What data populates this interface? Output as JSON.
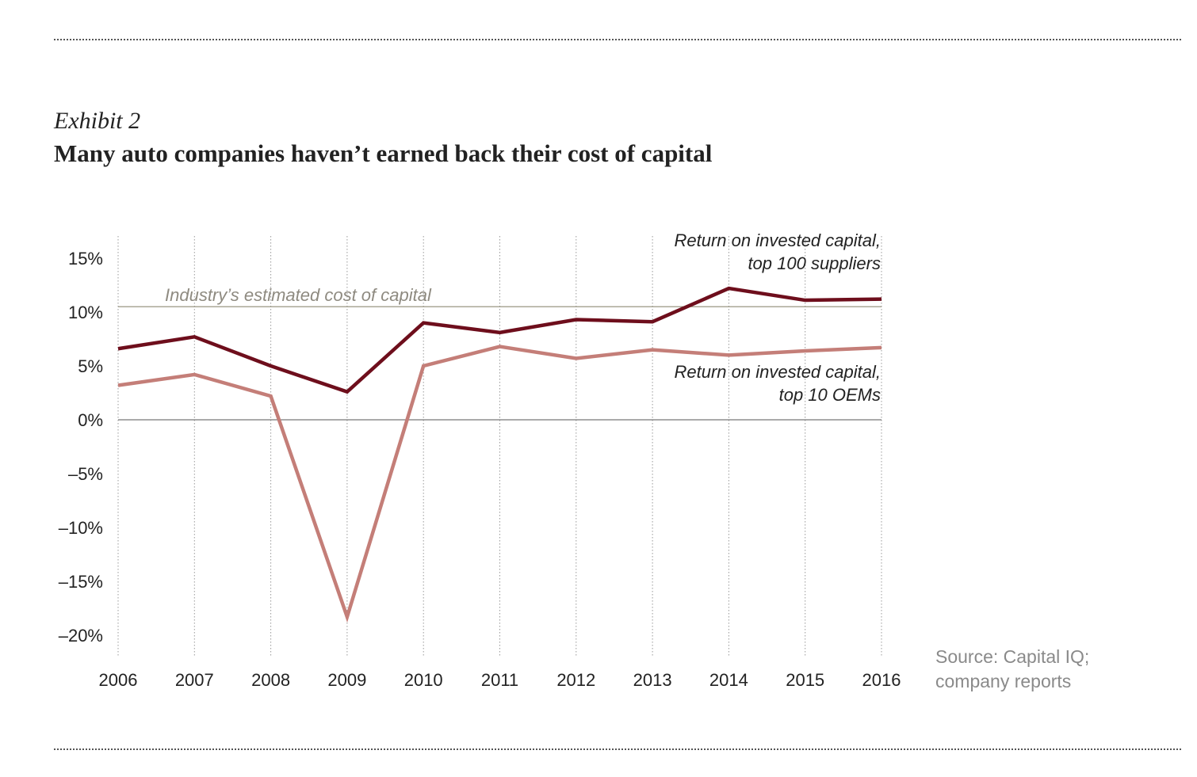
{
  "header": {
    "exhibit": "Exhibit 2",
    "title": "Many auto companies haven’t earned back their cost of capital"
  },
  "source": [
    "Source: Capital IQ;",
    "company reports"
  ],
  "colors": {
    "suppliers": "#6e0e1c",
    "oems": "#c47e78",
    "cost_line": "#8e8a74",
    "zero_line": "#777777",
    "grid": "#999999"
  },
  "chart_data": {
    "type": "line",
    "title": "Many auto companies haven’t earned back their cost of capital",
    "xlabel": "",
    "ylabel": "",
    "x": [
      "2006",
      "2007",
      "2008",
      "2009",
      "2010",
      "2011",
      "2012",
      "2013",
      "2014",
      "2015",
      "2016"
    ],
    "ylim": [
      -22,
      16
    ],
    "yticks": [
      15,
      10,
      5,
      0,
      -5,
      -10,
      -15,
      -20
    ],
    "ytick_labels": [
      "15%",
      "10%",
      "5%",
      "0%",
      "–5%",
      "–10%",
      "–15%",
      "–20%"
    ],
    "grid": "vertical dotted",
    "series": [
      {
        "name": "Return on invested capital, top 100 suppliers",
        "label_lines": [
          "Return on invested capital,",
          "top 100 suppliers"
        ],
        "color_key": "suppliers",
        "values": [
          6.6,
          7.7,
          5.0,
          2.6,
          9.0,
          8.1,
          9.3,
          9.1,
          12.2,
          11.1,
          11.2
        ]
      },
      {
        "name": "Return on invested capital, top 10 OEMs",
        "label_lines": [
          "Return on invested capital,",
          "top 10 OEMs"
        ],
        "color_key": "oems",
        "values": [
          3.2,
          4.2,
          2.2,
          -18.3,
          5.0,
          6.8,
          5.7,
          6.5,
          6.0,
          6.4,
          6.7
        ]
      }
    ],
    "annotations": [
      {
        "text": "Industry’s estimated cost of capital",
        "y": 10.5
      }
    ]
  }
}
